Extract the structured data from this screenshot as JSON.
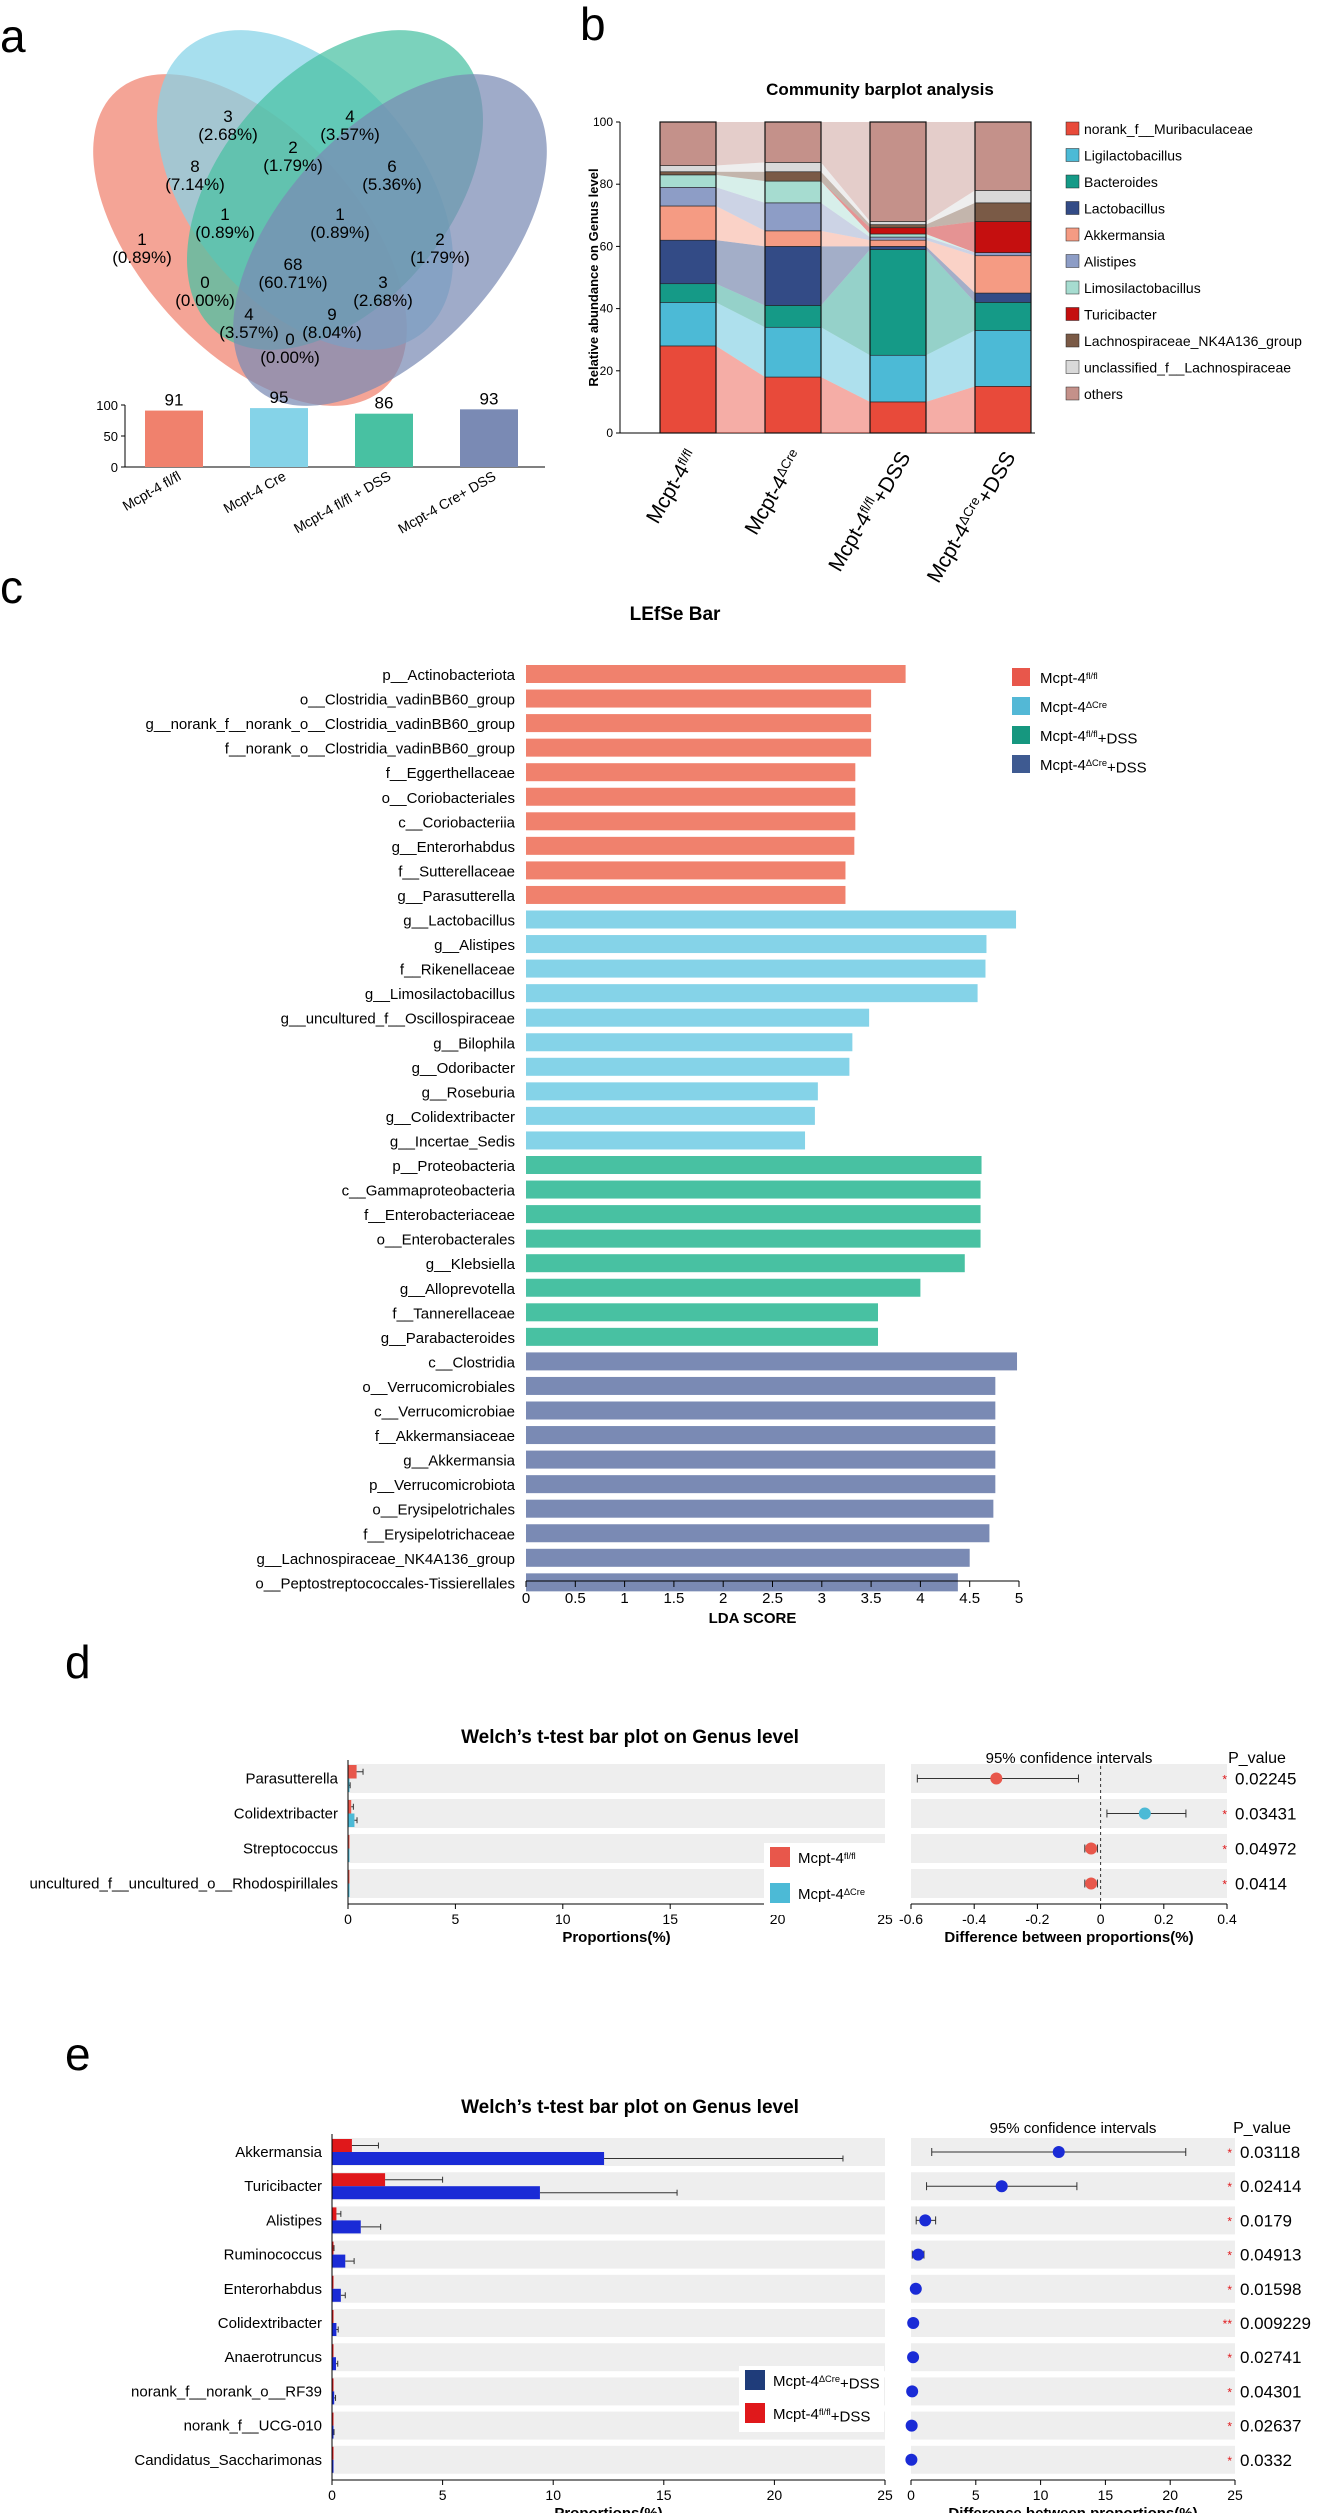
{
  "panel_labels": {
    "a": "a",
    "b": "b",
    "c": "c",
    "d": "d",
    "e": "e"
  },
  "group_colors": {
    "wt": "#f0816d",
    "cre": "#85d3e8",
    "wt_dss": "#48c1a2",
    "cre_dss": "#7a8ab4"
  },
  "venn": {
    "ellipse_colors": [
      "#f0816d",
      "#85d3e8",
      "#48c1a2",
      "#7a8ab4"
    ],
    "regions": [
      {
        "count": "3",
        "pct": "(2.68%)"
      },
      {
        "count": "4",
        "pct": "(3.57%)"
      },
      {
        "count": "8",
        "pct": "(7.14%)"
      },
      {
        "count": "2",
        "pct": "(1.79%)"
      },
      {
        "count": "6",
        "pct": "(5.36%)"
      },
      {
        "count": "1",
        "pct": "(0.89%)"
      },
      {
        "count": "1",
        "pct": "(0.89%)"
      },
      {
        "count": "1",
        "pct": "(0.89%)"
      },
      {
        "count": "68",
        "pct": "(60.71%)"
      },
      {
        "count": "2",
        "pct": "(1.79%)"
      },
      {
        "count": "0",
        "pct": "(0.00%)"
      },
      {
        "count": "3",
        "pct": "(2.68%)"
      },
      {
        "count": "4",
        "pct": "(3.57%)"
      },
      {
        "count": "9",
        "pct": "(8.04%)"
      },
      {
        "count": "0",
        "pct": "(0.00%)"
      }
    ]
  },
  "chart_data": [
    {
      "id": "a-totals",
      "type": "bar",
      "title": "",
      "categories": [
        "Mcpt-4 fl/fl",
        "Mcpt-4 Cre",
        "Mcpt-4 fl/fl + DSS",
        "Mcpt-4 Cre+ DSS"
      ],
      "values": [
        91,
        95,
        86,
        93
      ],
      "value_labels": [
        "91",
        "95",
        "86",
        "93"
      ],
      "ylim": [
        0,
        100
      ],
      "yticks": [
        "0",
        "50",
        "100"
      ],
      "colors": [
        "#f0816d",
        "#85d3e8",
        "#48c1a2",
        "#7a8ab4"
      ]
    },
    {
      "id": "b-community",
      "type": "bar",
      "stacked": true,
      "title": "Community barplot analysis",
      "ylabel": "Relative abundance on Genus level",
      "ylim": [
        0,
        100
      ],
      "yticks": [
        "0",
        "20",
        "40",
        "60",
        "80",
        "100"
      ],
      "categories": [
        {
          "base": "Mcpt-4",
          "sup": "fl/fl",
          "suffix": ""
        },
        {
          "base": "Mcpt-4",
          "sup": "ΔCre",
          "suffix": ""
        },
        {
          "base": "Mcpt-4",
          "sup": "fl/fl",
          "suffix": "+DSS"
        },
        {
          "base": "Mcpt-4",
          "sup": "ΔCre",
          "suffix": "+DSS"
        }
      ],
      "series": [
        {
          "name": "norank_f__Muribaculaceae",
          "color": "#e84a3a",
          "values": [
            28,
            18,
            10,
            15
          ]
        },
        {
          "name": "Ligilactobacillus",
          "color": "#4cbad6",
          "values": [
            14,
            16,
            15,
            18
          ]
        },
        {
          "name": "Bacteroides",
          "color": "#159a87",
          "values": [
            6,
            7,
            34,
            9
          ]
        },
        {
          "name": "Lactobacillus",
          "color": "#334b86",
          "values": [
            14,
            19,
            1,
            3
          ]
        },
        {
          "name": "Akkermansia",
          "color": "#f59b83",
          "values": [
            11,
            5,
            2,
            12
          ]
        },
        {
          "name": "Alistipes",
          "color": "#8d9dc6",
          "values": [
            6,
            9,
            1,
            1
          ]
        },
        {
          "name": "Limosilactobacillus",
          "color": "#a6dcd0",
          "values": [
            4,
            7,
            1,
            0
          ]
        },
        {
          "name": "Turicibacter",
          "color": "#c50f0f",
          "values": [
            0,
            0,
            2,
            10
          ]
        },
        {
          "name": "Lachnospiraceae_NK4A136_group",
          "color": "#7a5a46",
          "values": [
            1,
            3,
            1,
            6
          ]
        },
        {
          "name": "unclassified_f__Lachnospiraceae",
          "color": "#d9d9d9",
          "values": [
            2,
            3,
            1,
            4
          ]
        },
        {
          "name": "others",
          "color": "#c4918a",
          "values": [
            14,
            13,
            32,
            22
          ]
        }
      ]
    },
    {
      "id": "c-lefse",
      "type": "bar",
      "orientation": "horizontal",
      "title": "LEfSe Bar",
      "xlabel": "LDA SCORE",
      "xlim": [
        0,
        5
      ],
      "xticks": [
        "0",
        "0.5",
        "1",
        "1.5",
        "2",
        "2.5",
        "3",
        "3.5",
        "4",
        "4.5",
        "5"
      ],
      "legend": [
        {
          "base": "Mcpt-4",
          "sup": "fl/fl",
          "suffix": "",
          "color": "#e8574b"
        },
        {
          "base": "Mcpt-4",
          "sup": "ΔCre",
          "suffix": "",
          "color": "#53b8d6"
        },
        {
          "base": "Mcpt-4",
          "sup": "fl/fl",
          "suffix": "+DSS",
          "color": "#16977f"
        },
        {
          "base": "Mcpt-4",
          "sup": "ΔCre",
          "suffix": "+DSS",
          "color": "#3e5a91"
        }
      ],
      "bars": [
        {
          "label": "p__Actinobacteriota",
          "value": 3.85,
          "group": 0
        },
        {
          "label": "o__Clostridia_vadinBB60_group",
          "value": 3.5,
          "group": 0
        },
        {
          "label": "g__norank_f__norank_o__Clostridia_vadinBB60_group",
          "value": 3.5,
          "group": 0
        },
        {
          "label": "f__norank_o__Clostridia_vadinBB60_group",
          "value": 3.5,
          "group": 0
        },
        {
          "label": "f__Eggerthellaceae",
          "value": 3.34,
          "group": 0
        },
        {
          "label": "o__Coriobacteriales",
          "value": 3.34,
          "group": 0
        },
        {
          "label": "c__Coriobacteriia",
          "value": 3.34,
          "group": 0
        },
        {
          "label": "g__Enterorhabdus",
          "value": 3.33,
          "group": 0
        },
        {
          "label": "f__Sutterellaceae",
          "value": 3.24,
          "group": 0
        },
        {
          "label": "g__Parasutterella",
          "value": 3.24,
          "group": 0
        },
        {
          "label": "g__Lactobacillus",
          "value": 4.97,
          "group": 1
        },
        {
          "label": "g__Alistipes",
          "value": 4.67,
          "group": 1
        },
        {
          "label": "f__Rikenellaceae",
          "value": 4.66,
          "group": 1
        },
        {
          "label": "g__Limosilactobacillus",
          "value": 4.58,
          "group": 1
        },
        {
          "label": "g__uncultured_f__Oscillospiraceae",
          "value": 3.48,
          "group": 1
        },
        {
          "label": "g__Bilophila",
          "value": 3.31,
          "group": 1
        },
        {
          "label": "g__Odoribacter",
          "value": 3.28,
          "group": 1
        },
        {
          "label": "g__Roseburia",
          "value": 2.96,
          "group": 1
        },
        {
          "label": "g__Colidextribacter",
          "value": 2.93,
          "group": 1
        },
        {
          "label": "g__Incertae_Sedis",
          "value": 2.83,
          "group": 1
        },
        {
          "label": "p__Proteobacteria",
          "value": 4.62,
          "group": 2
        },
        {
          "label": "c__Gammaproteobacteria",
          "value": 4.61,
          "group": 2
        },
        {
          "label": "f__Enterobacteriaceae",
          "value": 4.61,
          "group": 2
        },
        {
          "label": "o__Enterobacterales",
          "value": 4.61,
          "group": 2
        },
        {
          "label": "g__Klebsiella",
          "value": 4.45,
          "group": 2
        },
        {
          "label": "g__Alloprevotella",
          "value": 4.0,
          "group": 2
        },
        {
          "label": "f__Tannerellaceae",
          "value": 3.57,
          "group": 2
        },
        {
          "label": "g__Parabacteroides",
          "value": 3.57,
          "group": 2
        },
        {
          "label": "c__Clostridia",
          "value": 4.98,
          "group": 3
        },
        {
          "label": "o__Verrucomicrobiales",
          "value": 4.76,
          "group": 3
        },
        {
          "label": "c__Verrucomicrobiae",
          "value": 4.76,
          "group": 3
        },
        {
          "label": "f__Akkermansiaceae",
          "value": 4.76,
          "group": 3
        },
        {
          "label": "g__Akkermansia",
          "value": 4.76,
          "group": 3
        },
        {
          "label": "p__Verrucomicrobiota",
          "value": 4.76,
          "group": 3
        },
        {
          "label": "o__Erysipelotrichales",
          "value": 4.74,
          "group": 3
        },
        {
          "label": "f__Erysipelotrichaceae",
          "value": 4.7,
          "group": 3
        },
        {
          "label": "g__Lachnospiraceae_NK4A136_group",
          "value": 4.5,
          "group": 3
        },
        {
          "label": "o__Peptostreptococcales-Tissierellales",
          "value": 4.38,
          "group": 3
        }
      ]
    },
    {
      "id": "d-welch",
      "type": "bar",
      "orientation": "horizontal",
      "title": "Welch’s t-test bar plot on Genus level",
      "xlabel": "Proportions(%)",
      "xlim": [
        0,
        25
      ],
      "xticks": [
        "0",
        "5",
        "10",
        "15",
        "20",
        "25"
      ],
      "ci_title": "95% confidence intervals",
      "ci_xlabel": "Difference between proportions(%)",
      "ci_xlim": [
        -0.6,
        0.4
      ],
      "ci_xticks": [
        "-0.6",
        "-0.4",
        "-0.2",
        "0",
        "0.2",
        "0.4"
      ],
      "pvalue_title": "P_value",
      "legend": [
        {
          "base": "Mcpt-4",
          "sup": "fl/fl",
          "suffix": "",
          "color": "#e8574b"
        },
        {
          "base": "Mcpt-4",
          "sup": "ΔCre",
          "suffix": "",
          "color": "#4cbad6"
        }
      ],
      "rows": [
        {
          "label": "Parasutterella",
          "a": 0.4,
          "a_err": 0.3,
          "b": 0.05,
          "b_err": 0.05,
          "diff": -0.33,
          "lo": -0.58,
          "hi": -0.07,
          "pvalue": "0.02245",
          "stars": "*",
          "dot_color": "#e8574b"
        },
        {
          "label": "Colidextribacter",
          "a": 0.15,
          "a_err": 0.1,
          "b": 0.3,
          "b_err": 0.12,
          "diff": 0.14,
          "lo": 0.02,
          "hi": 0.27,
          "pvalue": "0.03431",
          "stars": "*",
          "dot_color": "#4cbad6"
        },
        {
          "label": "Streptococcus",
          "a": 0.03,
          "a_err": 0.01,
          "b": 0.0,
          "b_err": 0.0,
          "diff": -0.03,
          "lo": -0.05,
          "hi": -0.01,
          "pvalue": "0.04972",
          "stars": "*",
          "dot_color": "#e8574b"
        },
        {
          "label": "uncultured_f__uncultured_o__Rhodospirillales",
          "a": 0.03,
          "a_err": 0.01,
          "b": 0.0,
          "b_err": 0.0,
          "diff": -0.03,
          "lo": -0.05,
          "hi": -0.01,
          "pvalue": "0.0414",
          "stars": "*",
          "dot_color": "#e8574b"
        }
      ]
    },
    {
      "id": "e-welch",
      "type": "bar",
      "orientation": "horizontal",
      "title": "Welch’s t-test bar plot on Genus level",
      "xlabel": "Proportions(%)",
      "xlim": [
        0,
        25
      ],
      "xticks": [
        "0",
        "5",
        "10",
        "15",
        "20",
        "25"
      ],
      "ci_title": "95% confidence intervals",
      "ci_xlabel": "Difference between proportions(%)",
      "ci_xlim": [
        0,
        25
      ],
      "ci_xticks": [
        "0",
        "5",
        "10",
        "15",
        "20",
        "25"
      ],
      "pvalue_title": "P_value",
      "legend": [
        {
          "base": "Mcpt-4",
          "sup": "ΔCre",
          "suffix": "+DSS",
          "color": "#1f3c7a"
        },
        {
          "base": "Mcpt-4",
          "sup": "fl/fl",
          "suffix": "+DSS",
          "color": "#e0181b"
        }
      ],
      "rows": [
        {
          "label": "Akkermansia",
          "a": 0.9,
          "a_err": 1.2,
          "b": 12.3,
          "b_err": 10.8,
          "diff": 11.4,
          "lo": 1.6,
          "hi": 21.2,
          "pvalue": "0.03118",
          "stars": "*",
          "dot_color": "#1a2bd6"
        },
        {
          "label": "Turicibacter",
          "a": 2.4,
          "a_err": 2.6,
          "b": 9.4,
          "b_err": 6.2,
          "diff": 7.0,
          "lo": 1.2,
          "hi": 12.8,
          "pvalue": "0.02414",
          "stars": "*",
          "dot_color": "#1a2bd6"
        },
        {
          "label": "Alistipes",
          "a": 0.2,
          "a_err": 0.2,
          "b": 1.3,
          "b_err": 0.9,
          "diff": 1.1,
          "lo": 0.4,
          "hi": 1.9,
          "pvalue": "0.0179",
          "stars": "*",
          "dot_color": "#1a2bd6"
        },
        {
          "label": "Ruminococcus",
          "a": 0.05,
          "a_err": 0.04,
          "b": 0.6,
          "b_err": 0.4,
          "diff": 0.55,
          "lo": 0.1,
          "hi": 1.0,
          "pvalue": "0.04913",
          "stars": "*",
          "dot_color": "#1a2bd6"
        },
        {
          "label": "Enterorhabdus",
          "a": 0.03,
          "a_err": 0.02,
          "b": 0.4,
          "b_err": 0.2,
          "diff": 0.37,
          "lo": 0.1,
          "hi": 0.6,
          "pvalue": "0.01598",
          "stars": "*",
          "dot_color": "#1a2bd6"
        },
        {
          "label": "Colidextribacter",
          "a": 0.03,
          "a_err": 0.02,
          "b": 0.2,
          "b_err": 0.08,
          "diff": 0.17,
          "lo": 0.06,
          "hi": 0.28,
          "pvalue": "0.009229",
          "stars": "**",
          "dot_color": "#1a2bd6"
        },
        {
          "label": "Anaerotruncus",
          "a": 0.02,
          "a_err": 0.01,
          "b": 0.18,
          "b_err": 0.08,
          "diff": 0.16,
          "lo": 0.05,
          "hi": 0.27,
          "pvalue": "0.02741",
          "stars": "*",
          "dot_color": "#1a2bd6"
        },
        {
          "label": "norank_f__norank_o__RF39",
          "a": 0.01,
          "a_err": 0.01,
          "b": 0.1,
          "b_err": 0.06,
          "diff": 0.09,
          "lo": 0.01,
          "hi": 0.17,
          "pvalue": "0.04301",
          "stars": "*",
          "dot_color": "#1a2bd6"
        },
        {
          "label": "norank_f__UCG-010",
          "a": 0.01,
          "a_err": 0.01,
          "b": 0.06,
          "b_err": 0.03,
          "diff": 0.05,
          "lo": 0.01,
          "hi": 0.09,
          "pvalue": "0.02637",
          "stars": "*",
          "dot_color": "#1a2bd6"
        },
        {
          "label": "Candidatus_Saccharimonas",
          "a": 0.01,
          "a_err": 0.01,
          "b": 0.04,
          "b_err": 0.02,
          "diff": 0.03,
          "lo": 0.005,
          "hi": 0.06,
          "pvalue": "0.0332",
          "stars": "*",
          "dot_color": "#1a2bd6"
        }
      ]
    }
  ]
}
